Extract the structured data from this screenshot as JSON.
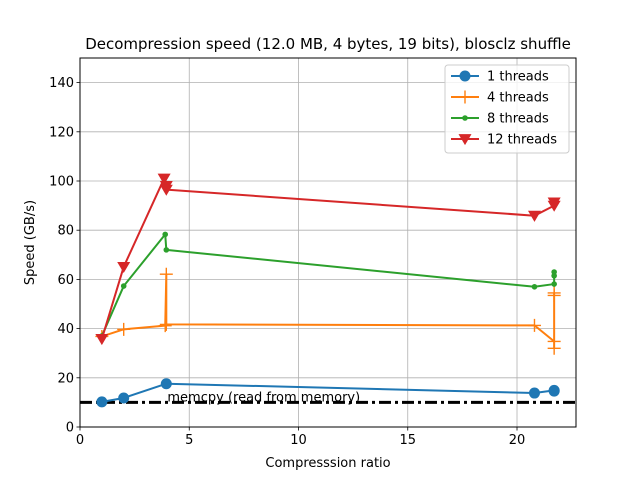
{
  "chart_data": {
    "type": "line",
    "title": "Decompression speed (12.0 MB, 4 bytes, 19 bits), blosclz shuffle",
    "xlabel": "Compresssion ratio",
    "ylabel": "Speed (GB/s)",
    "xlim": [
      0,
      22.7
    ],
    "ylim": [
      0,
      150
    ],
    "xticks": [
      0,
      5,
      10,
      15,
      20
    ],
    "yticks": [
      0,
      20,
      40,
      60,
      80,
      100,
      120,
      140
    ],
    "grid": true,
    "legend_position": "top-right",
    "series": [
      {
        "name": "1 threads",
        "color": "#1f77b4",
        "marker": "circle",
        "x": [
          1.0,
          2.0,
          3.95,
          20.8,
          21.7,
          21.7
        ],
        "y": [
          10.2,
          11.8,
          17.6,
          13.8,
          14.9,
          14.6
        ]
      },
      {
        "name": "4 threads",
        "color": "#ff7f0e",
        "marker": "plus",
        "x": [
          1.0,
          2.0,
          3.9,
          3.95,
          3.95,
          20.8,
          21.7,
          21.7,
          21.7,
          21.7
        ],
        "y": [
          36.8,
          39.7,
          41.2,
          62.1,
          41.7,
          41.3,
          34.8,
          32.0,
          53.5,
          54.5
        ]
      },
      {
        "name": "8 threads",
        "color": "#2ca02c",
        "marker": "dot",
        "x": [
          1.0,
          2.0,
          3.9,
          3.95,
          20.8,
          21.7,
          21.7,
          21.7
        ],
        "y": [
          37.0,
          57.3,
          78.3,
          72.0,
          57.0,
          58.1,
          61.5,
          63.0
        ]
      },
      {
        "name": "12 threads",
        "color": "#d62728",
        "marker": "triangle-down",
        "x": [
          1.0,
          2.0,
          3.85,
          3.95,
          3.95,
          20.8,
          21.7,
          21.7
        ],
        "y": [
          35.8,
          65.1,
          101.0,
          98.0,
          96.5,
          85.9,
          90.0,
          91.3
        ]
      }
    ],
    "reference_line": {
      "label": "memcpy (read from memory)",
      "y": 10.0,
      "color": "#000000",
      "style": "dash-dot"
    }
  }
}
